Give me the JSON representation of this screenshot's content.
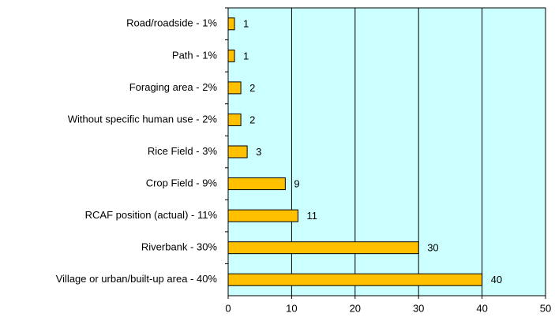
{
  "chart_data": {
    "type": "bar",
    "orientation": "horizontal",
    "categories": [
      "Road/roadside - 1%",
      "Path - 1%",
      "Foraging area - 2%",
      "Without specific human use - 2%",
      "Rice Field - 3%",
      "Crop Field - 9%",
      "RCAF position (actual) - 11%",
      "Riverbank - 30%",
      "Village or urban/built-up area - 40%"
    ],
    "values": [
      1,
      1,
      2,
      2,
      3,
      9,
      11,
      30,
      40
    ],
    "color": "#ffc000",
    "xlim": [
      0,
      50
    ],
    "xticks": [
      0,
      10,
      20,
      30,
      40,
      50
    ],
    "grid": true
  }
}
